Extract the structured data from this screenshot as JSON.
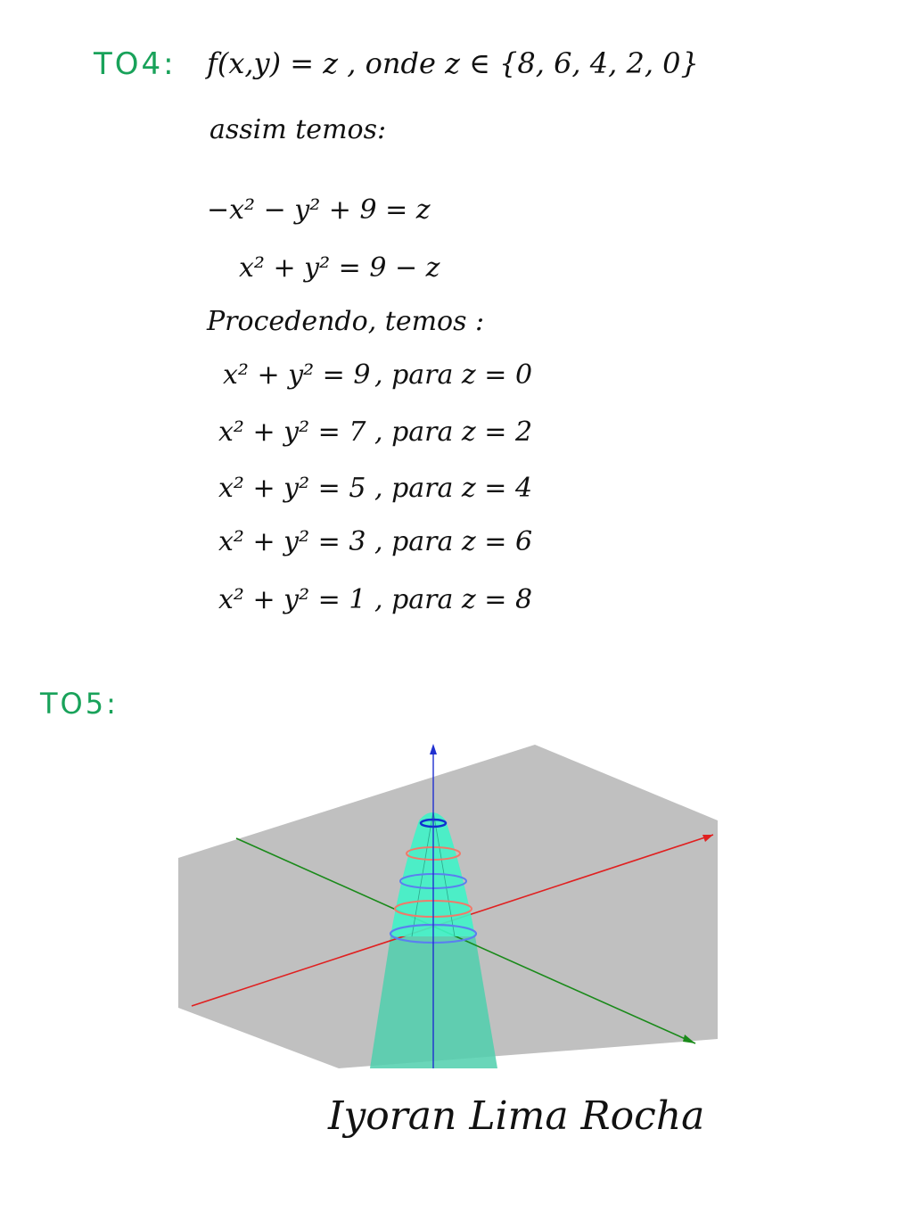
{
  "q4": {
    "label": "TO4:",
    "line1": "f(x,y) = z , onde z ∈ {8, 6, 4, 2, 0}",
    "line2": "assim temos:",
    "eq1": "−x² − y² + 9 = z",
    "eq2": "x² + y² = 9 − z",
    "line3": "Procedendo, temos :",
    "curves": [
      {
        "eq": "x² + y² = 9",
        "cond": ", para z = 0"
      },
      {
        "eq": "x² + y² = 7",
        "cond": ", para z = 2"
      },
      {
        "eq": "x² + y² = 5",
        "cond": ", para z = 4"
      },
      {
        "eq": "x² + y² = 3",
        "cond": ", para z = 6"
      },
      {
        "eq": "x² + y² = 1",
        "cond": ", para z = 8"
      }
    ]
  },
  "q5": {
    "label": "TO5:"
  },
  "signature": "Iyoran Lima Rocha",
  "colors": {
    "ink": "#111111",
    "label_green": "#19a25a",
    "plane": "#c0c0c0",
    "surface": "#3ff3c8",
    "x_axis": "#e02020",
    "y_axis": "#1a8a1a",
    "z_axis": "#2030d0",
    "level_blue": "#5a7ff0",
    "level_red": "#f07a6a"
  }
}
